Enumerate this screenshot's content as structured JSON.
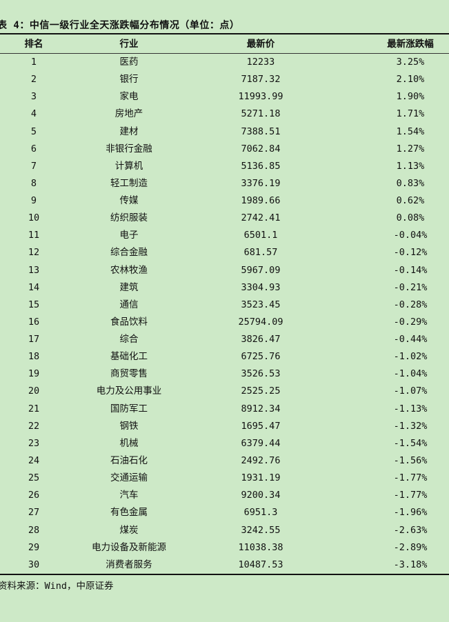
{
  "title": "表 4：中信一级行业全天涨跌幅分布情况（单位：点）",
  "columns": [
    "排名",
    "行业",
    "最新价",
    "最新涨跌幅"
  ],
  "rows": [
    [
      "1",
      "医药",
      "12233",
      "3.25%"
    ],
    [
      "2",
      "银行",
      "7187.32",
      "2.10%"
    ],
    [
      "3",
      "家电",
      "11993.99",
      "1.90%"
    ],
    [
      "4",
      "房地产",
      "5271.18",
      "1.71%"
    ],
    [
      "5",
      "建材",
      "7388.51",
      "1.54%"
    ],
    [
      "6",
      "非银行金融",
      "7062.84",
      "1.27%"
    ],
    [
      "7",
      "计算机",
      "5136.85",
      "1.13%"
    ],
    [
      "8",
      "轻工制造",
      "3376.19",
      "0.83%"
    ],
    [
      "9",
      "传媒",
      "1989.66",
      "0.62%"
    ],
    [
      "10",
      "纺织服装",
      "2742.41",
      "0.08%"
    ],
    [
      "11",
      "电子",
      "6501.1",
      "-0.04%"
    ],
    [
      "12",
      "综合金融",
      "681.57",
      "-0.12%"
    ],
    [
      "13",
      "农林牧渔",
      "5967.09",
      "-0.14%"
    ],
    [
      "14",
      "建筑",
      "3304.93",
      "-0.21%"
    ],
    [
      "15",
      "通信",
      "3523.45",
      "-0.28%"
    ],
    [
      "16",
      "食品饮料",
      "25794.09",
      "-0.29%"
    ],
    [
      "17",
      "综合",
      "3826.47",
      "-0.44%"
    ],
    [
      "18",
      "基础化工",
      "6725.76",
      "-1.02%"
    ],
    [
      "19",
      "商贸零售",
      "3526.53",
      "-1.04%"
    ],
    [
      "20",
      "电力及公用事业",
      "2525.25",
      "-1.07%"
    ],
    [
      "21",
      "国防军工",
      "8912.34",
      "-1.13%"
    ],
    [
      "22",
      "钢铁",
      "1695.47",
      "-1.32%"
    ],
    [
      "23",
      "机械",
      "6379.44",
      "-1.54%"
    ],
    [
      "24",
      "石油石化",
      "2492.76",
      "-1.56%"
    ],
    [
      "25",
      "交通运输",
      "1931.19",
      "-1.77%"
    ],
    [
      "26",
      "汽车",
      "9200.34",
      "-1.77%"
    ],
    [
      "27",
      "有色金属",
      "6951.3",
      "-1.96%"
    ],
    [
      "28",
      "煤炭",
      "3242.55",
      "-2.63%"
    ],
    [
      "29",
      "电力设备及新能源",
      "11038.38",
      "-2.89%"
    ],
    [
      "30",
      "消费者服务",
      "10487.53",
      "-3.18%"
    ]
  ],
  "source": "资料来源：Wind，中原证券",
  "colors": {
    "background": "#cde9c7",
    "text": "#111111"
  }
}
